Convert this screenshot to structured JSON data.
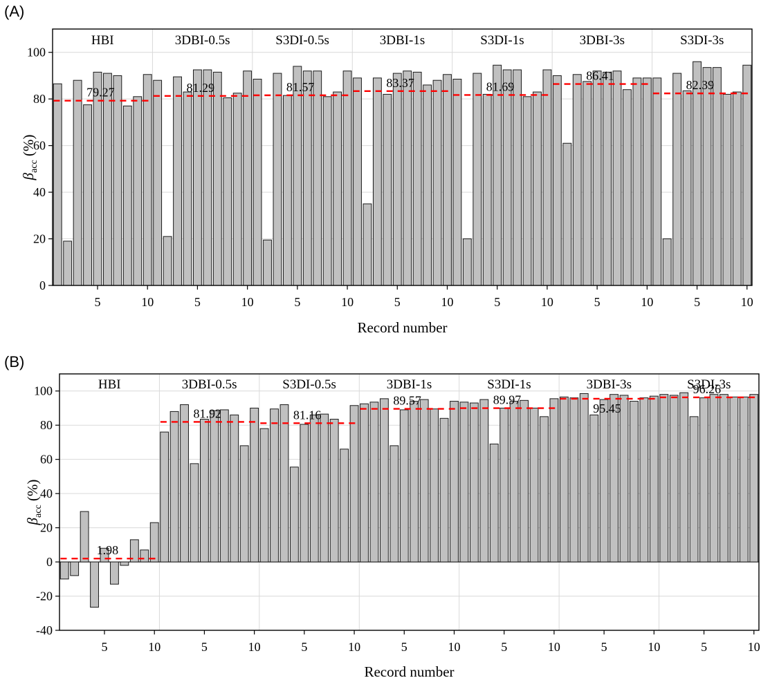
{
  "chart_data": [
    {
      "type": "bar",
      "panel_label": "(A)",
      "xlabel": "Record number",
      "ylabel_main": "β",
      "ylabel_sub": "acc",
      "ylabel_unit": "(%)",
      "ylim": [
        0,
        110
      ],
      "yticks": [
        0,
        20,
        40,
        60,
        80,
        100
      ],
      "grid": true,
      "mean_line_color": "#ff0000",
      "bar_fill": "#c0c0c0",
      "groups": [
        {
          "name": "HBI",
          "mean": 79.27,
          "mean_label": "79.27",
          "values": [
            86.5,
            19,
            88,
            77.5,
            91.5,
            91,
            90,
            77,
            81,
            90.5
          ]
        },
        {
          "name": "3DBI-0.5s",
          "mean": 81.29,
          "mean_label": "81.29",
          "values": [
            88,
            21,
            89.5,
            83,
            92.5,
            92.5,
            91.5,
            80.5,
            82.5,
            92
          ]
        },
        {
          "name": "S3DI-0.5s",
          "mean": 81.57,
          "mean_label": "81.57",
          "values": [
            88.5,
            19.5,
            91,
            81.5,
            94,
            92,
            92,
            81,
            83,
            92
          ]
        },
        {
          "name": "3DBI-1s",
          "mean": 83.37,
          "mean_label": "83.37",
          "values": [
            89,
            35,
            89,
            82,
            91,
            92,
            91.5,
            86,
            88,
            90.5
          ]
        },
        {
          "name": "S3DI-1s",
          "mean": 81.69,
          "mean_label": "81.69",
          "values": [
            88.5,
            20,
            91,
            82,
            94.5,
            92.5,
            92.5,
            81,
            83,
            92.5
          ]
        },
        {
          "name": "3DBI-3s",
          "mean": 86.41,
          "mean_label": "86.41",
          "values": [
            90,
            61,
            90.5,
            87.5,
            92,
            91.5,
            92,
            84,
            89,
            89
          ]
        },
        {
          "name": "S3DI-3s",
          "mean": 82.39,
          "mean_label": "82.39",
          "values": [
            89,
            20,
            91,
            83.5,
            96,
            93.5,
            93.5,
            82,
            83,
            94.5
          ]
        }
      ],
      "xtick_labels": [
        "5",
        "10"
      ]
    },
    {
      "type": "bar",
      "panel_label": "(B)",
      "xlabel": "Record number",
      "ylabel_main": "β",
      "ylabel_sub": "acc",
      "ylabel_unit": "(%)",
      "ylim": [
        -40,
        110
      ],
      "yticks": [
        -40,
        -20,
        0,
        20,
        40,
        60,
        80,
        100
      ],
      "grid": true,
      "mean_line_color": "#ff0000",
      "bar_fill": "#c0c0c0",
      "groups": [
        {
          "name": "HBI",
          "mean": 1.98,
          "mean_label": "1.98",
          "values": [
            -10,
            -8,
            29.5,
            -26.5,
            8,
            -13,
            -2,
            13,
            7,
            23
          ]
        },
        {
          "name": "3DBI-0.5s",
          "mean": 81.92,
          "mean_label": "81.92",
          "values": [
            76,
            88,
            92,
            57.5,
            83.5,
            88.5,
            89,
            86,
            68,
            90
          ]
        },
        {
          "name": "S3DI-0.5s",
          "mean": 81.16,
          "mean_label": "81.16",
          "values": [
            78,
            89.5,
            92,
            55.5,
            80.5,
            86,
            86.5,
            83.5,
            66,
            91.5
          ]
        },
        {
          "name": "3DBI-1s",
          "mean": 89.57,
          "mean_label": "89.57",
          "values": [
            92.5,
            93.5,
            95.5,
            68,
            89,
            94,
            95,
            89.5,
            84,
            94
          ]
        },
        {
          "name": "S3DI-1s",
          "mean": 89.97,
          "mean_label": "89.97",
          "values": [
            93.5,
            93,
            95,
            69,
            90,
            94,
            94.5,
            90,
            85,
            95.5
          ]
        },
        {
          "name": "3DBI-3s",
          "mean": 95.45,
          "mean_label": "95.45",
          "values": [
            96.5,
            96,
            98.5,
            86,
            95,
            98,
            97.5,
            94,
            96,
            97
          ]
        },
        {
          "name": "S3DI-3s",
          "mean": 96.26,
          "mean_label": "96.26",
          "values": [
            98,
            97.5,
            99,
            85,
            96,
            98,
            98,
            96.5,
            96.5,
            98
          ]
        }
      ],
      "xtick_labels": [
        "5",
        "10"
      ]
    }
  ]
}
